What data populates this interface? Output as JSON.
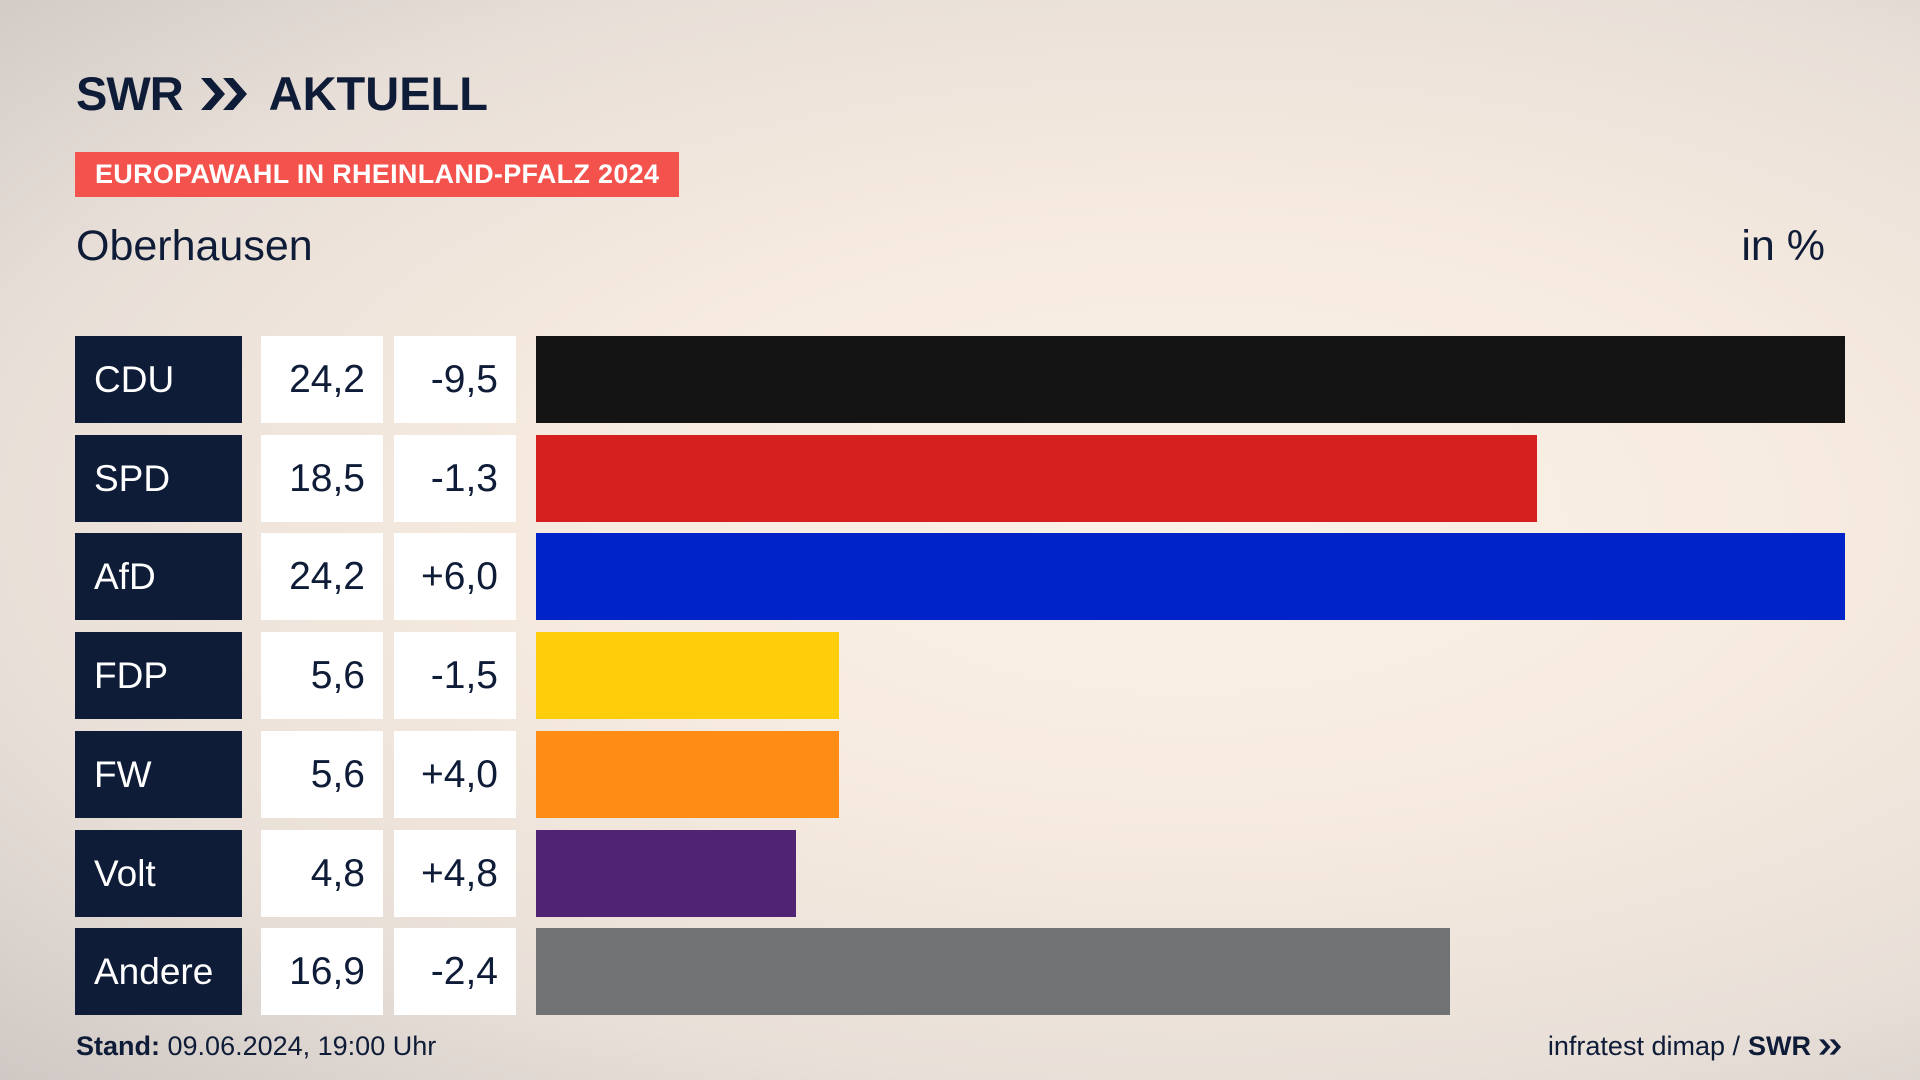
{
  "header": {
    "brand": "SWR",
    "section": "AKTUELL",
    "banner": "EUROPAWAHL IN RHEINLAND-PFALZ 2024",
    "place": "Oberhausen",
    "unit": "in %"
  },
  "chart_data": {
    "type": "bar",
    "orientation": "horizontal",
    "title": "Oberhausen",
    "unit": "in %",
    "categories": [
      "CDU",
      "SPD",
      "AfD",
      "FDP",
      "FW",
      "Volt",
      "Andere"
    ],
    "values": [
      24.2,
      18.5,
      24.2,
      5.6,
      5.6,
      4.8,
      16.9
    ],
    "value_labels": [
      "24,2",
      "18,5",
      "24,2",
      "5,6",
      "5,6",
      "4,8",
      "16,9"
    ],
    "diff_labels": [
      "-9,5",
      "-1,3",
      "+6,0",
      "-1,5",
      "+4,0",
      "+4,8",
      "-2,4"
    ],
    "colors": [
      "#141414",
      "#d62020",
      "#0022c9",
      "#ffcd0a",
      "#ff8c14",
      "#512373",
      "#717274"
    ],
    "xlim": [
      0,
      24.2
    ]
  },
  "footer": {
    "stand_label": "Stand:",
    "stand_value": "09.06.2024, 19:00 Uhr",
    "source": "infratest dimap /",
    "brand": "SWR"
  }
}
